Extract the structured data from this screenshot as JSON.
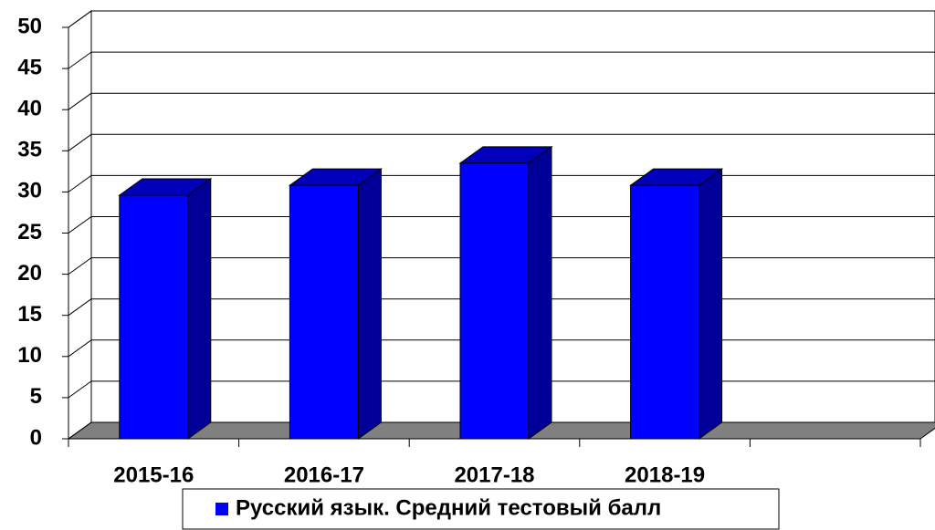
{
  "chart_data": {
    "type": "bar3d",
    "categories": [
      "2015-16",
      "2016-17",
      "2017-18",
      "2018-19",
      null
    ],
    "series": [
      {
        "name": "Русский язык. Средний тестовый балл",
        "color": "#0000ff",
        "values": [
          29.6,
          30.8,
          33.5,
          30.8,
          null
        ]
      }
    ],
    "ylim": [
      0,
      50
    ],
    "yticks": [
      0,
      5,
      10,
      15,
      20,
      25,
      30,
      35,
      40,
      45,
      50
    ],
    "grid": true,
    "legend": "bottom"
  }
}
